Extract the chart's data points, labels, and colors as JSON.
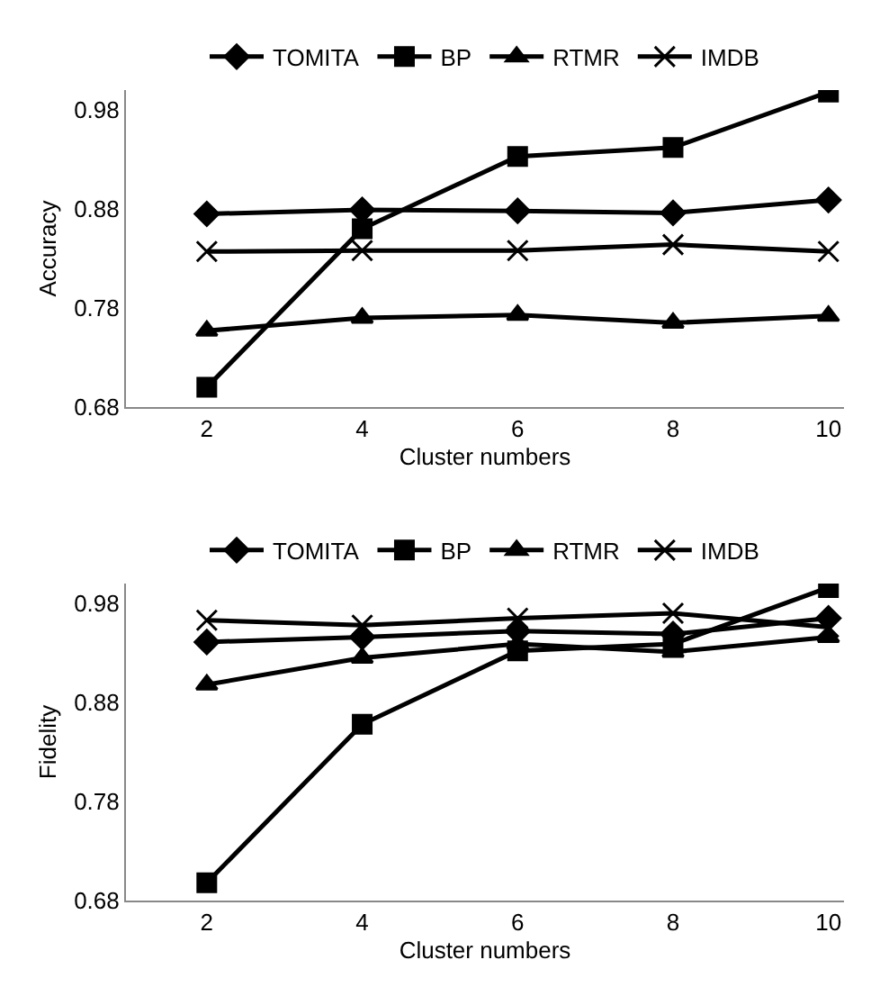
{
  "chart_data": [
    {
      "type": "line",
      "ylabel": "Accuracy",
      "xlabel": "Cluster numbers",
      "categories": [
        "2",
        "4",
        "6",
        "8",
        "10"
      ],
      "ylim": [
        0.68,
        1.0
      ],
      "yticks": [
        0.68,
        0.78,
        0.88,
        0.98
      ],
      "grid": false,
      "legend": "top",
      "series": [
        {
          "name": "TOMITA",
          "color": "#000000",
          "marker": "diamond",
          "values": [
            0.875,
            0.879,
            0.878,
            0.876,
            0.889
          ]
        },
        {
          "name": "BP",
          "color": "#000000",
          "marker": "square",
          "values": [
            0.7,
            0.86,
            0.933,
            0.942,
            0.998
          ]
        },
        {
          "name": "RTMR",
          "color": "#000000",
          "marker": "triangle",
          "values": [
            0.757,
            0.77,
            0.773,
            0.765,
            0.772
          ]
        },
        {
          "name": "IMDB",
          "color": "#000000",
          "marker": "cross",
          "values": [
            0.837,
            0.838,
            0.838,
            0.844,
            0.837
          ]
        }
      ]
    },
    {
      "type": "line",
      "ylabel": "Fidelity",
      "xlabel": "Cluster numbers",
      "categories": [
        "2",
        "4",
        "6",
        "8",
        "10"
      ],
      "ylim": [
        0.68,
        1.0
      ],
      "yticks": [
        0.68,
        0.78,
        0.88,
        0.98
      ],
      "grid": false,
      "legend": "top",
      "series": [
        {
          "name": "TOMITA",
          "color": "#000000",
          "marker": "diamond",
          "values": [
            0.941,
            0.946,
            0.952,
            0.949,
            0.965
          ]
        },
        {
          "name": "BP",
          "color": "#000000",
          "marker": "square",
          "values": [
            0.698,
            0.858,
            0.932,
            0.939,
            0.996
          ]
        },
        {
          "name": "RTMR",
          "color": "#000000",
          "marker": "triangle",
          "values": [
            0.898,
            0.925,
            0.939,
            0.931,
            0.946
          ]
        },
        {
          "name": "IMDB",
          "color": "#000000",
          "marker": "cross",
          "values": [
            0.963,
            0.958,
            0.965,
            0.97,
            0.956
          ]
        }
      ]
    }
  ]
}
